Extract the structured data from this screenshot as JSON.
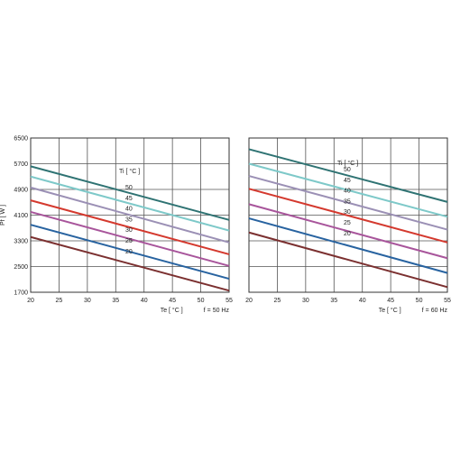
{
  "chart_data": [
    {
      "type": "line",
      "ylabel": "Pf  [ W ]",
      "xlabel": "Te  [ °C ]",
      "freq_label": "f = 50 Hz",
      "legend_title": "Ti  [ °C ]",
      "xlim": [
        20,
        55
      ],
      "ylim": [
        1700,
        6500
      ],
      "x_ticks": [
        20,
        25,
        30,
        35,
        40,
        45,
        50,
        55
      ],
      "y_ticks": [
        1700,
        2500,
        3300,
        4100,
        4900,
        5700,
        6500
      ],
      "grid": true,
      "series": [
        {
          "name": "50",
          "color": "#2f7373",
          "x": [
            20,
            55
          ],
          "y": [
            5620,
            3950
          ]
        },
        {
          "name": "45",
          "color": "#7ec9c9",
          "x": [
            20,
            55
          ],
          "y": [
            5300,
            3620
          ]
        },
        {
          "name": "40",
          "color": "#9b90b5",
          "x": [
            20,
            55
          ],
          "y": [
            4960,
            3250
          ]
        },
        {
          "name": "35",
          "color": "#d4392e",
          "x": [
            20,
            55
          ],
          "y": [
            4560,
            2880
          ]
        },
        {
          "name": "30",
          "color": "#a8559b",
          "x": [
            20,
            55
          ],
          "y": [
            4200,
            2520
          ]
        },
        {
          "name": "25",
          "color": "#2863a0",
          "x": [
            20,
            55
          ],
          "y": [
            3800,
            2120
          ]
        },
        {
          "name": "20",
          "color": "#7b3030",
          "x": [
            20,
            55
          ],
          "y": [
            3420,
            1750
          ]
        }
      ]
    },
    {
      "type": "line",
      "ylabel": "",
      "xlabel": "Te  [ °C ]",
      "freq_label": "f = 60 Hz",
      "legend_title": "Ti  [ °C ]",
      "xlim": [
        20,
        55
      ],
      "ylim": [
        1700,
        6500
      ],
      "x_ticks": [
        20,
        25,
        30,
        35,
        40,
        45,
        50,
        55
      ],
      "y_ticks": [
        1700,
        2500,
        3300,
        4100,
        4900,
        5700,
        6500
      ],
      "grid": true,
      "series": [
        {
          "name": "50",
          "color": "#2f7373",
          "x": [
            20,
            55
          ],
          "y": [
            6150,
            4510
          ]
        },
        {
          "name": "45",
          "color": "#7ec9c9",
          "x": [
            20,
            55
          ],
          "y": [
            5700,
            4050
          ]
        },
        {
          "name": "40",
          "color": "#9b90b5",
          "x": [
            20,
            55
          ],
          "y": [
            5320,
            3650
          ]
        },
        {
          "name": "35",
          "color": "#d4392e",
          "x": [
            20,
            55
          ],
          "y": [
            4920,
            3250
          ]
        },
        {
          "name": "30",
          "color": "#a8559b",
          "x": [
            20,
            55
          ],
          "y": [
            4440,
            2760
          ]
        },
        {
          "name": "25",
          "color": "#2863a0",
          "x": [
            20,
            55
          ],
          "y": [
            4000,
            2300
          ]
        },
        {
          "name": "20",
          "color": "#7b3030",
          "x": [
            20,
            55
          ],
          "y": [
            3560,
            1860
          ]
        }
      ]
    }
  ]
}
